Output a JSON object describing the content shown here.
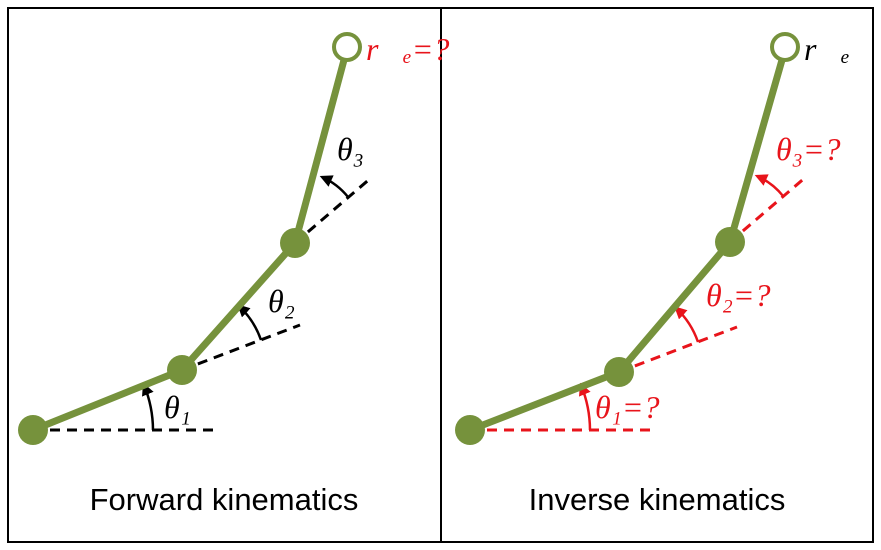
{
  "panels": [
    {
      "caption": "Forward kinematics",
      "end_effector_label": "r⃗ₑ=?",
      "joint_labels": [
        "θ₁",
        "θ₂",
        "θ₃"
      ]
    },
    {
      "caption": "Inverse kinematics",
      "end_effector_label": "r⃗ₑ",
      "joint_labels": [
        "θ₁=?",
        "θ₂=?",
        "θ₃=?"
      ]
    }
  ]
}
